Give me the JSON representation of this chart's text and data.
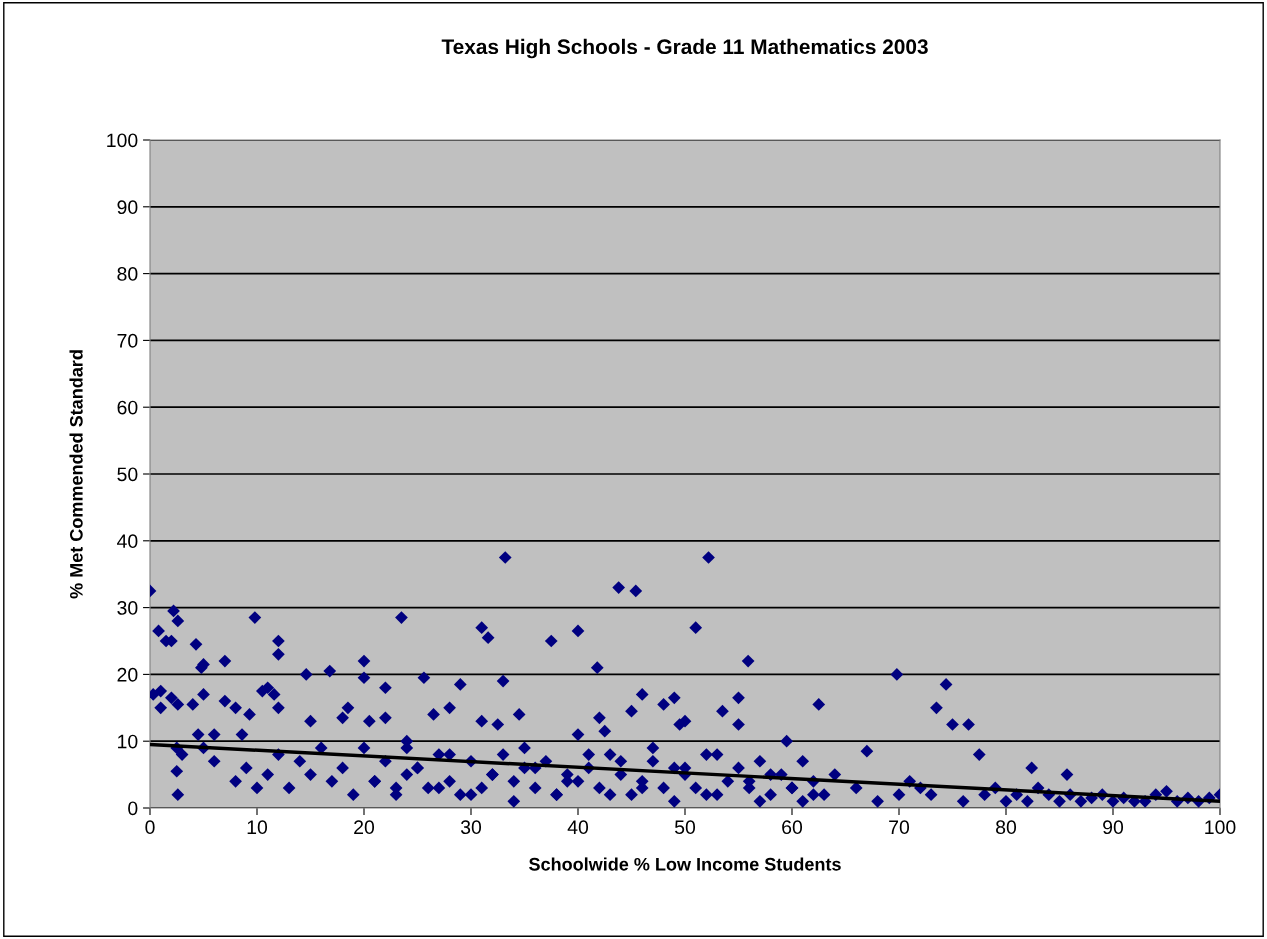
{
  "chart_data": {
    "type": "scatter",
    "title": "Texas High Schools - Grade 11 Mathematics 2003",
    "xlabel": "Schoolwide % Low Income Students",
    "ylabel": "% Met Commended Standard",
    "xlim": [
      0,
      100
    ],
    "ylim": [
      0,
      100
    ],
    "xticks": [
      0,
      10,
      20,
      30,
      40,
      50,
      60,
      70,
      80,
      90,
      100
    ],
    "yticks": [
      0,
      10,
      20,
      30,
      40,
      50,
      60,
      70,
      80,
      90,
      100
    ],
    "grid": "y",
    "series": [
      {
        "color": "#000080",
        "marker": "diamond",
        "x": [
          0,
          0.3,
          0.8,
          1,
          1,
          1.5,
          2,
          2,
          2.2,
          2.6,
          2.6,
          2.5,
          2.5,
          2.6,
          4,
          4.3,
          4.8,
          5,
          5,
          4.5,
          6,
          7,
          7,
          8,
          8.6,
          9.3,
          9.8,
          10.5,
          11,
          11.6,
          12,
          12,
          12,
          14.6,
          15,
          16.8,
          18,
          18.5,
          20,
          20,
          20.5,
          22,
          22,
          23.5,
          24,
          25.6,
          26.5,
          28,
          29,
          31,
          31,
          31.6,
          32.5,
          33,
          33.2,
          34.5,
          37.5,
          40,
          40,
          41.8,
          42,
          42.5,
          43.8,
          45,
          45.4,
          46,
          48,
          49,
          49.5,
          50,
          51,
          52.2,
          53.5,
          55,
          55,
          55.9,
          59.5,
          62.5,
          67,
          69.8,
          73.5,
          74.4,
          75,
          76.5,
          77.5,
          82.4,
          85.7,
          3,
          5,
          6,
          8,
          9,
          10,
          11,
          12,
          13,
          14,
          15,
          16,
          17,
          18,
          19,
          20,
          21,
          22,
          23,
          24,
          25,
          26,
          27,
          28,
          29,
          30,
          31,
          32,
          33,
          34,
          35,
          36,
          37,
          38,
          39,
          40,
          41,
          42,
          43,
          44,
          45,
          46,
          47,
          48,
          49,
          50,
          51,
          52,
          53,
          54,
          55,
          56,
          57,
          58,
          59,
          60,
          61,
          62,
          63,
          64,
          66,
          68,
          70,
          71,
          72,
          73,
          76,
          78,
          79,
          80,
          81,
          82,
          83,
          84,
          85,
          86,
          87,
          88,
          89,
          90,
          91,
          92,
          93,
          94,
          95,
          96,
          97,
          98,
          99,
          100,
          21,
          23,
          24,
          25,
          27,
          28,
          30,
          32,
          34,
          35,
          36,
          38,
          39,
          41,
          43,
          44,
          46,
          47,
          49,
          50,
          52,
          53,
          56,
          57,
          58,
          60,
          61,
          62
        ],
        "values": [
          32.5,
          17,
          26.5,
          17.5,
          15,
          25,
          25,
          16.5,
          29.5,
          28,
          15.5,
          9,
          5.5,
          2,
          15.5,
          24.5,
          21,
          21.5,
          17,
          11,
          11,
          22,
          16,
          15,
          11,
          14,
          28.5,
          17.5,
          18,
          17,
          25,
          23,
          15,
          20,
          13,
          20.5,
          13.5,
          15,
          22,
          19.5,
          13,
          18,
          13.5,
          28.5,
          10,
          19.5,
          14,
          15,
          18.5,
          13,
          27,
          25.5,
          12.5,
          19,
          37.5,
          14,
          25,
          26.5,
          11,
          21,
          13.5,
          11.5,
          33,
          14.5,
          32.5,
          17,
          15.5,
          16.5,
          12.5,
          13,
          27,
          37.5,
          14.5,
          16.5,
          12.5,
          22,
          10,
          15.5,
          8.5,
          20,
          15,
          18.5,
          12.5,
          12.5,
          8,
          6,
          5,
          8,
          9,
          7,
          4,
          6,
          3,
          5,
          8,
          3,
          7,
          5,
          9,
          4,
          6,
          2,
          9,
          4,
          7,
          3,
          5,
          6,
          3,
          8,
          4,
          2,
          7,
          3,
          5,
          8,
          4,
          6,
          3,
          7,
          2,
          5,
          4,
          6,
          3,
          8,
          5,
          2,
          4,
          7,
          3,
          6,
          5,
          3,
          8,
          2,
          4,
          6,
          3,
          7,
          2,
          5,
          3,
          1,
          4,
          2,
          5,
          3,
          1,
          2,
          4,
          3,
          2,
          1,
          2,
          3,
          1,
          2,
          1,
          3,
          2,
          1,
          2,
          1,
          1.5,
          2,
          1,
          1.5,
          1,
          1,
          2,
          2.5,
          1,
          1.5,
          1,
          1.5,
          2,
          4,
          2,
          9,
          6,
          3,
          8,
          2,
          5,
          1,
          9,
          6,
          2,
          4,
          8,
          2,
          7,
          3,
          9,
          1,
          6,
          2,
          8,
          4,
          1,
          5,
          3,
          7,
          2
        ]
      },
      {
        "type": "line",
        "marker": "none",
        "color": "#000000",
        "x": [
          0,
          100
        ],
        "values": [
          9.5,
          1.0
        ]
      }
    ]
  }
}
